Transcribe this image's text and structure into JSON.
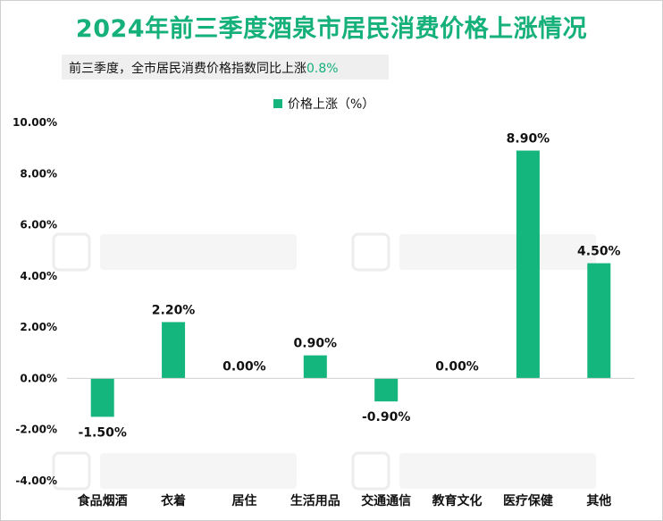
{
  "header": {
    "title": "2024年前三季度酒泉市居民消费价格上涨情况",
    "subtitle_prefix": "前三季度，全市居民消费价格指数同比上涨",
    "subtitle_value": "0.8%"
  },
  "colors": {
    "accent": "#16b07a",
    "bar": "#15b57e",
    "axis": "#d0d0d0"
  },
  "chart_data": {
    "type": "bar",
    "title": "2024年前三季度酒泉市居民消费价格上涨情况",
    "categories": [
      "食品烟酒",
      "衣着",
      "居住",
      "生活用品",
      "交通通信",
      "教育文化",
      "医疗保健",
      "其他"
    ],
    "series": [
      {
        "name": "价格上涨（%）",
        "values": [
          -1.5,
          2.2,
          0.0,
          0.9,
          -0.9,
          0.0,
          8.9,
          4.5
        ],
        "labels": [
          "-1.50%",
          "2.20%",
          "0.00%",
          "0.90%",
          "-0.90%",
          "0.00%",
          "8.90%",
          "4.50%"
        ]
      }
    ],
    "ylim": [
      -4,
      10
    ],
    "yticks": [
      -4,
      -2,
      0,
      2,
      4,
      6,
      8,
      10
    ],
    "ytick_labels": [
      "-4.00%",
      "-2.00%",
      "0.00%",
      "2.00%",
      "4.00%",
      "6.00%",
      "8.00%",
      "10.00%"
    ],
    "xlabel": "",
    "ylabel": "",
    "grid": false,
    "legend": "top-center"
  }
}
